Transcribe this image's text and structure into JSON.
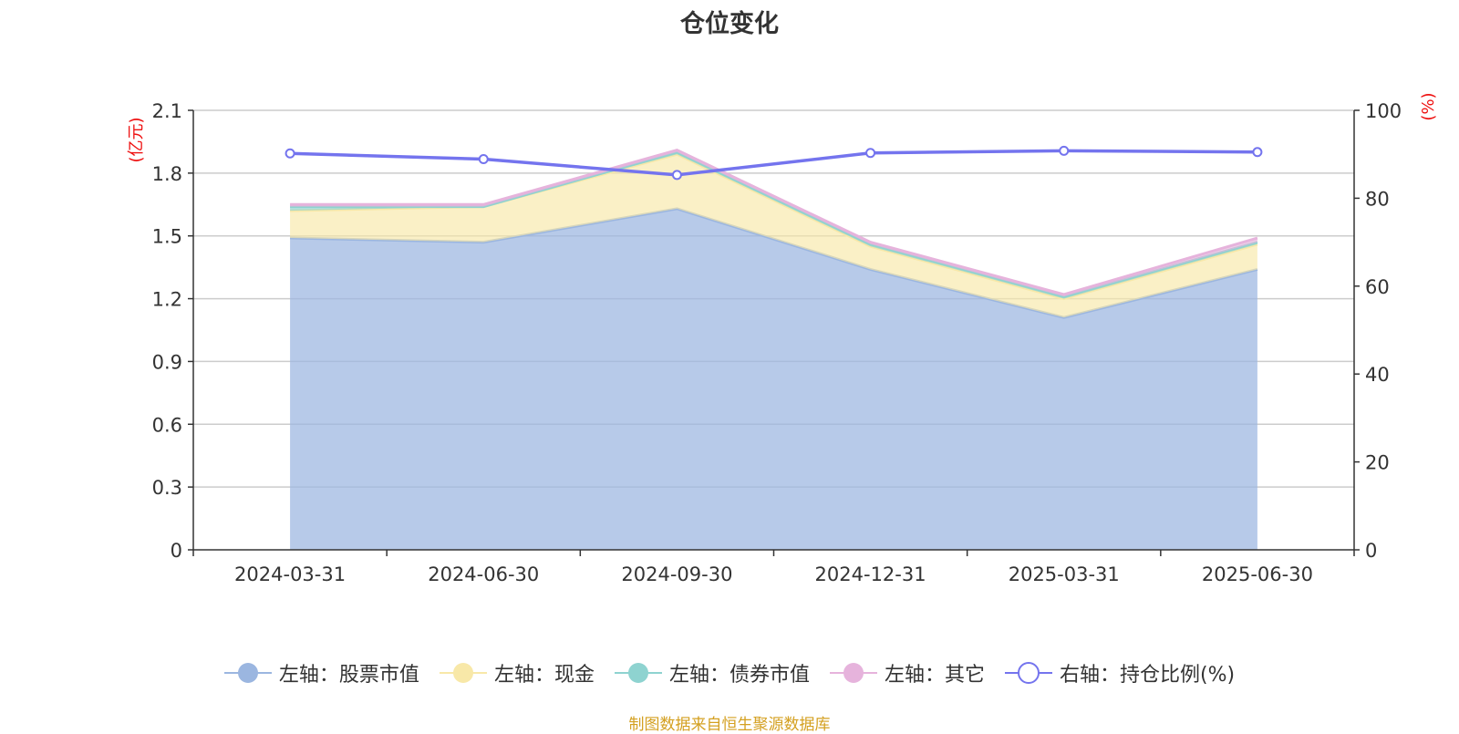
{
  "title": "仓位变化",
  "source": "制图数据来自恒生聚源数据库",
  "left_unit": "(亿元)",
  "right_unit": "(%)",
  "legend": [
    {
      "label": "左轴：股票市值",
      "color": "#9bb6e0",
      "marker": "filled"
    },
    {
      "label": "左轴：现金",
      "color": "#f8e8a8",
      "marker": "filled"
    },
    {
      "label": "左轴：债券市值",
      "color": "#8ed3d0",
      "marker": "filled"
    },
    {
      "label": "左轴：其它",
      "color": "#e6b3dc",
      "marker": "filled"
    },
    {
      "label": "右轴：持仓比例(%)",
      "color": "#7474ee",
      "marker": "hollow"
    }
  ],
  "chart_data": {
    "type": "area",
    "categories": [
      "2024-03-31",
      "2024-06-30",
      "2024-09-30",
      "2024-12-31",
      "2025-03-31",
      "2025-06-30"
    ],
    "series": [
      {
        "name": "左轴：股票市值",
        "axis": "left",
        "type": "stacked-area",
        "color": "#9bb6e0",
        "values": [
          1.49,
          1.47,
          1.63,
          1.34,
          1.11,
          1.34
        ]
      },
      {
        "name": "左轴：现金",
        "axis": "left",
        "type": "stacked-area",
        "color": "#f8e8a8",
        "values": [
          0.13,
          0.17,
          0.26,
          0.11,
          0.09,
          0.12
        ]
      },
      {
        "name": "左轴：债券市值",
        "axis": "left",
        "type": "stacked-area",
        "color": "#8ed3d0",
        "values": [
          0.02,
          0.0,
          0.01,
          0.01,
          0.01,
          0.01
        ]
      },
      {
        "name": "左轴：其它",
        "axis": "left",
        "type": "stacked-area",
        "color": "#e6b3dc",
        "values": [
          0.01,
          0.01,
          0.01,
          0.01,
          0.01,
          0.02
        ]
      },
      {
        "name": "右轴：持仓比例(%)",
        "axis": "right",
        "type": "line",
        "color": "#7474ee",
        "values": [
          90.2,
          88.9,
          85.3,
          90.3,
          90.8,
          90.5
        ]
      }
    ],
    "left_axis": {
      "min": 0,
      "max": 2.1,
      "ticks": [
        "0",
        "0.3",
        "0.6",
        "0.9",
        "1.2",
        "1.5",
        "1.8",
        "2.1"
      ]
    },
    "right_axis": {
      "min": 0,
      "max": 100,
      "ticks": [
        "0",
        "20",
        "40",
        "60",
        "80",
        "100"
      ]
    },
    "grid": true
  }
}
